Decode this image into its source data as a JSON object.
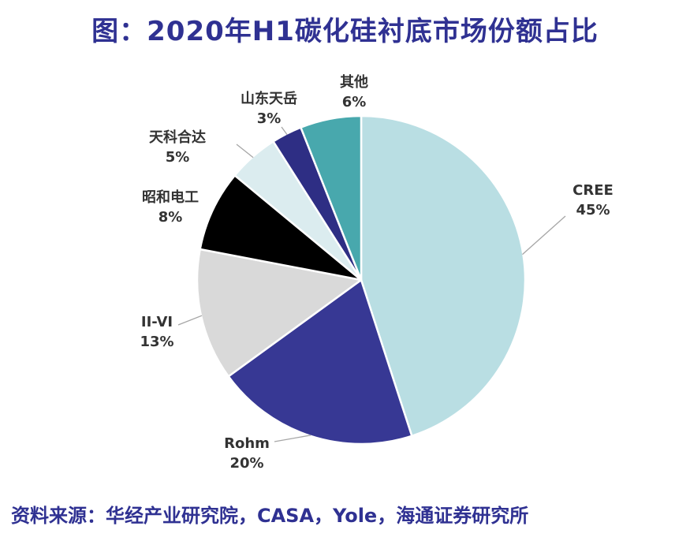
{
  "chart_data": {
    "type": "pie",
    "title": "图：2020年H1碳化硅衬底市场份额占比",
    "start_angle_deg": 0,
    "direction": "clockwise",
    "slices": [
      {
        "label": "CREE",
        "value": 45,
        "value_label": "45%",
        "color": "#b9dee3"
      },
      {
        "label": "Rohm",
        "value": 20,
        "value_label": "20%",
        "color": "#373894"
      },
      {
        "label": "II-VI",
        "value": 13,
        "value_label": "13%",
        "color": "#d9d9d9"
      },
      {
        "label": "昭和电工",
        "value": 8,
        "value_label": "8%",
        "color": "#000000"
      },
      {
        "label": "天科合达",
        "value": 5,
        "value_label": "5%",
        "color": "#dbecef"
      },
      {
        "label": "山东天岳",
        "value": 3,
        "value_label": "3%",
        "color": "#2e2e84"
      },
      {
        "label": "其他",
        "value": 6,
        "value_label": "6%",
        "color": "#48a8ad"
      }
    ]
  },
  "source": "资料来源：华经产业研究院，CASA，Yole，海通证券研究所"
}
